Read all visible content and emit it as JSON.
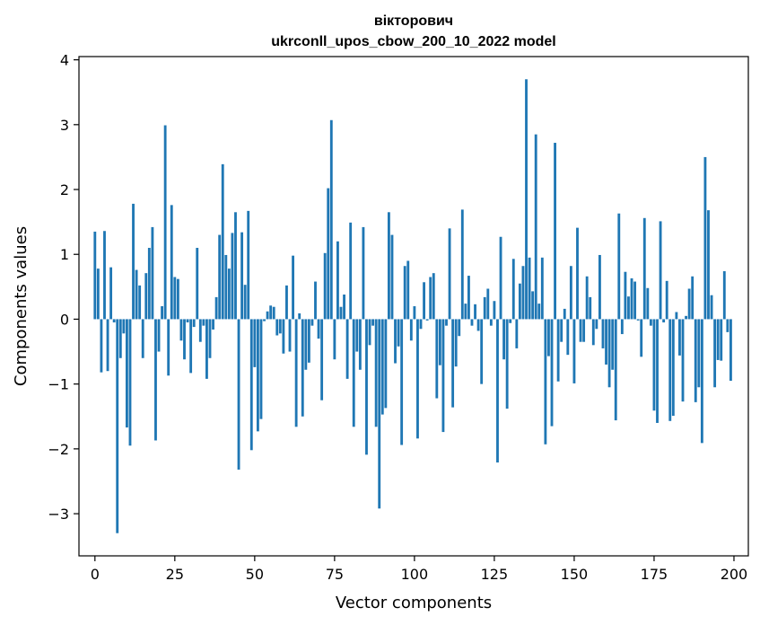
{
  "chart_data": {
    "type": "bar",
    "title": "вікторович",
    "subtitle": "ukrconll_upos_cbow_200_10_2022 model",
    "xlabel": "Vector components",
    "ylabel": "Components values",
    "xlim": [
      -5,
      204.5
    ],
    "ylim": [
      -3.65,
      4.05
    ],
    "xticks": [
      0,
      25,
      50,
      75,
      100,
      125,
      150,
      175,
      200
    ],
    "yticks": [
      -3,
      -2,
      -1,
      0,
      1,
      2,
      3,
      4
    ],
    "xtick_labels": [
      "0",
      "25",
      "50",
      "75",
      "100",
      "125",
      "150",
      "175",
      "200"
    ],
    "ytick_labels": [
      "−3",
      "−2",
      "−1",
      "0",
      "1",
      "2",
      "3",
      "4"
    ],
    "bar_color": "#1f77b4",
    "grid": false,
    "x": [
      0,
      1,
      2,
      3,
      4,
      5,
      6,
      7,
      8,
      9,
      10,
      11,
      12,
      13,
      14,
      15,
      16,
      17,
      18,
      19,
      20,
      21,
      22,
      23,
      24,
      25,
      26,
      27,
      28,
      29,
      30,
      31,
      32,
      33,
      34,
      35,
      36,
      37,
      38,
      39,
      40,
      41,
      42,
      43,
      44,
      45,
      46,
      47,
      48,
      49,
      50,
      51,
      52,
      53,
      54,
      55,
      56,
      57,
      58,
      59,
      60,
      61,
      62,
      63,
      64,
      65,
      66,
      67,
      68,
      69,
      70,
      71,
      72,
      73,
      74,
      75,
      76,
      77,
      78,
      79,
      80,
      81,
      82,
      83,
      84,
      85,
      86,
      87,
      88,
      89,
      90,
      91,
      92,
      93,
      94,
      95,
      96,
      97,
      98,
      99,
      100,
      101,
      102,
      103,
      104,
      105,
      106,
      107,
      108,
      109,
      110,
      111,
      112,
      113,
      114,
      115,
      116,
      117,
      118,
      119,
      120,
      121,
      122,
      123,
      124,
      125,
      126,
      127,
      128,
      129,
      130,
      131,
      132,
      133,
      134,
      135,
      136,
      137,
      138,
      139,
      140,
      141,
      142,
      143,
      144,
      145,
      146,
      147,
      148,
      149,
      150,
      151,
      152,
      153,
      154,
      155,
      156,
      157,
      158,
      159,
      160,
      161,
      162,
      163,
      164,
      165,
      166,
      167,
      168,
      169,
      170,
      171,
      172,
      173,
      174,
      175,
      176,
      177,
      178,
      179,
      180,
      181,
      182,
      183,
      184,
      185,
      186,
      187,
      188,
      189,
      190,
      191,
      192,
      193,
      194,
      195,
      196,
      197,
      198,
      199
    ],
    "values": [
      1.35,
      0.78,
      -0.82,
      1.36,
      -0.8,
      0.8,
      -0.05,
      -3.3,
      -0.6,
      -0.22,
      -1.67,
      -1.95,
      1.78,
      0.76,
      0.52,
      -0.6,
      0.71,
      1.1,
      1.42,
      -1.87,
      -0.5,
      0.2,
      2.99,
      -0.87,
      1.76,
      0.65,
      0.62,
      -0.33,
      -0.62,
      -0.05,
      -0.83,
      -0.12,
      1.1,
      -0.35,
      -0.1,
      -0.92,
      -0.6,
      -0.16,
      0.34,
      1.3,
      2.39,
      0.99,
      0.78,
      1.33,
      1.65,
      -2.32,
      1.34,
      0.53,
      1.67,
      -2.02,
      -0.74,
      -1.73,
      -1.54,
      -0.03,
      0.12,
      0.21,
      0.19,
      -0.25,
      -0.22,
      -0.53,
      0.52,
      -0.5,
      0.98,
      -1.66,
      0.09,
      -1.5,
      -0.78,
      -0.67,
      -0.1,
      0.58,
      -0.3,
      -1.25,
      1.02,
      2.02,
      3.07,
      -0.62,
      1.2,
      0.19,
      0.38,
      -0.92,
      1.49,
      -1.66,
      -0.5,
      -0.78,
      1.42,
      -2.09,
      -0.4,
      -0.1,
      -1.66,
      -2.92,
      -1.47,
      -1.37,
      1.65,
      1.3,
      -0.68,
      -0.42,
      -1.94,
      0.82,
      0.9,
      -0.33,
      0.2,
      -1.84,
      -0.15,
      0.57,
      -0.02,
      0.65,
      0.71,
      -1.22,
      -0.71,
      -1.74,
      -0.1,
      1.4,
      -1.36,
      -0.73,
      -0.26,
      1.69,
      0.24,
      0.67,
      -0.1,
      0.23,
      -0.18,
      -1.0,
      0.34,
      0.47,
      -0.1,
      0.28,
      -2.21,
      1.27,
      -0.62,
      -1.38,
      -0.06,
      0.93,
      -0.45,
      0.55,
      0.82,
      3.7,
      0.95,
      0.43,
      2.85,
      0.24,
      0.95,
      -1.93,
      -0.57,
      -1.65,
      2.72,
      -0.96,
      -0.35,
      0.16,
      -0.55,
      0.82,
      -0.99,
      1.41,
      -0.35,
      -0.35,
      0.66,
      0.34,
      -0.4,
      -0.15,
      0.99,
      -0.45,
      -0.7,
      -1.05,
      -0.78,
      -1.56,
      1.63,
      -0.23,
      0.73,
      0.35,
      0.63,
      0.58,
      -0.02,
      -0.58,
      1.56,
      0.48,
      -0.1,
      -1.41,
      -1.6,
      1.51,
      -0.05,
      0.59,
      -1.57,
      -1.49,
      0.11,
      -0.56,
      -1.27,
      0.05,
      0.47,
      0.66,
      -1.28,
      -1.05,
      -1.91,
      2.5,
      1.68,
      0.37,
      -1.05,
      -0.63,
      -0.64,
      0.74,
      -0.2,
      -0.95
    ]
  }
}
